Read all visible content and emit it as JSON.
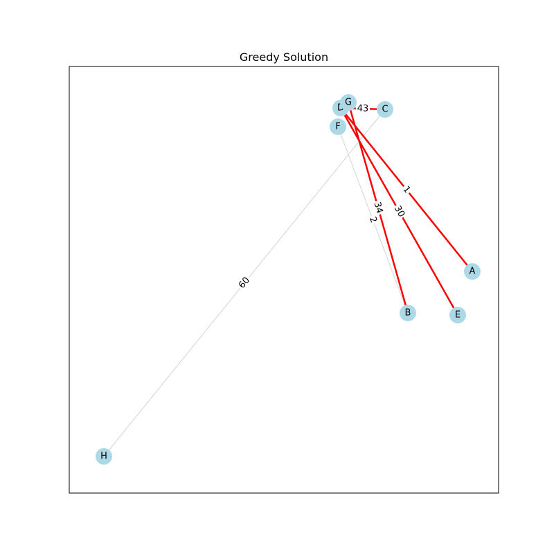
{
  "title": "Greedy Solution",
  "colors": {
    "node_fill": "#add8e6",
    "selected_edge": "#ff0000",
    "unselected_edge": "#d3d3d3",
    "frame": "#000000",
    "label_bg": "#ffffff"
  },
  "graph": {
    "nodes": [
      {
        "id": "A",
        "label": "A"
      },
      {
        "id": "B",
        "label": "B"
      },
      {
        "id": "C",
        "label": "C"
      },
      {
        "id": "D",
        "label": "D"
      },
      {
        "id": "E",
        "label": "E"
      },
      {
        "id": "F",
        "label": "F"
      },
      {
        "id": "G",
        "label": "G"
      },
      {
        "id": "H",
        "label": "H"
      }
    ],
    "edges": [
      {
        "source": "H",
        "target": "C",
        "weight": "60",
        "selected": false
      },
      {
        "source": "F",
        "target": "B",
        "weight": "2",
        "selected": false
      },
      {
        "source": "D",
        "target": "C",
        "weight": "43",
        "selected": true
      },
      {
        "source": "D",
        "target": "A",
        "weight": "1",
        "selected": true
      },
      {
        "source": "G",
        "target": "B",
        "weight": "34",
        "selected": true
      },
      {
        "source": "D",
        "target": "E",
        "weight": "30",
        "selected": true
      }
    ]
  }
}
